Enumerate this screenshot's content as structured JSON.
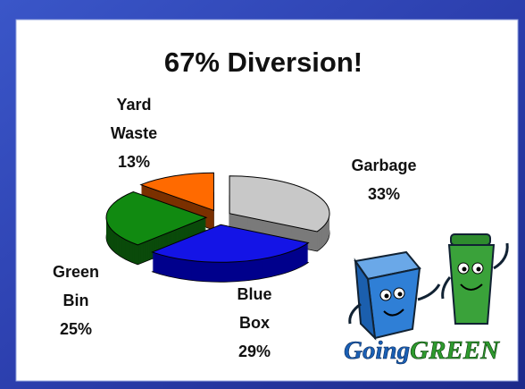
{
  "chart_data": {
    "type": "pie",
    "title": "67% Diversion!",
    "categories": [
      "Garbage",
      "Blue Box",
      "Green Bin",
      "Yard Waste"
    ],
    "values": [
      33,
      29,
      25,
      13
    ],
    "value_labels": [
      "33%",
      "29%",
      "25%",
      "13%"
    ],
    "colors": [
      "#c8c8c8",
      "#1414e6",
      "#118a11",
      "#ff6a00"
    ],
    "side_colors": [
      "#7a7a7a",
      "#00008c",
      "#0a4a0a",
      "#7a3000"
    ],
    "three_d": true,
    "exploded": true
  },
  "logo": {
    "word1": "Going",
    "word2": "GREEN"
  }
}
